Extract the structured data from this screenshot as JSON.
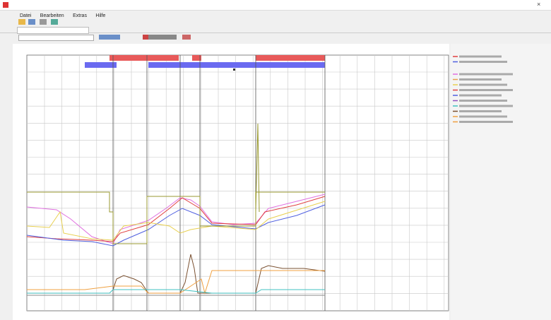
{
  "menu": [
    "Datei",
    "Bearbeiten",
    "Extras",
    "Hilfe"
  ]
}
